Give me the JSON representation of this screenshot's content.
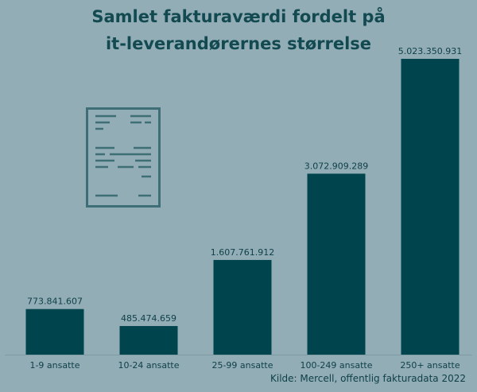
{
  "title_line1": "Samlet fakturaværdi fordelt på",
  "title_line2": "it-leverandørernes størrelse",
  "source": "Kilde: Mercell, offentlig fakturadata 2022",
  "icon": "invoice-document-icon",
  "colors": {
    "background": "#92adb5",
    "bar": "#00444d",
    "title": "#134a52",
    "text": "#0e3f47"
  },
  "chart_data": {
    "type": "bar",
    "title": "Samlet fakturaværdi fordelt på it-leverandørernes størrelse",
    "categories": [
      "1-9 ansatte",
      "10-24 ansatte",
      "25-99 ansatte",
      "100-249 ansatte",
      "250+ ansatte"
    ],
    "values": [
      773841607,
      485474659,
      1607761912,
      3072909289,
      5023350931
    ],
    "value_labels": [
      "773.841.607",
      "485.474.659",
      "1.607.761.912",
      "3.072.909.289",
      "5.023.350.931"
    ],
    "xlabel": "",
    "ylabel": "",
    "ylim": [
      0,
      5023350931
    ],
    "grid": false,
    "legend": "none"
  }
}
